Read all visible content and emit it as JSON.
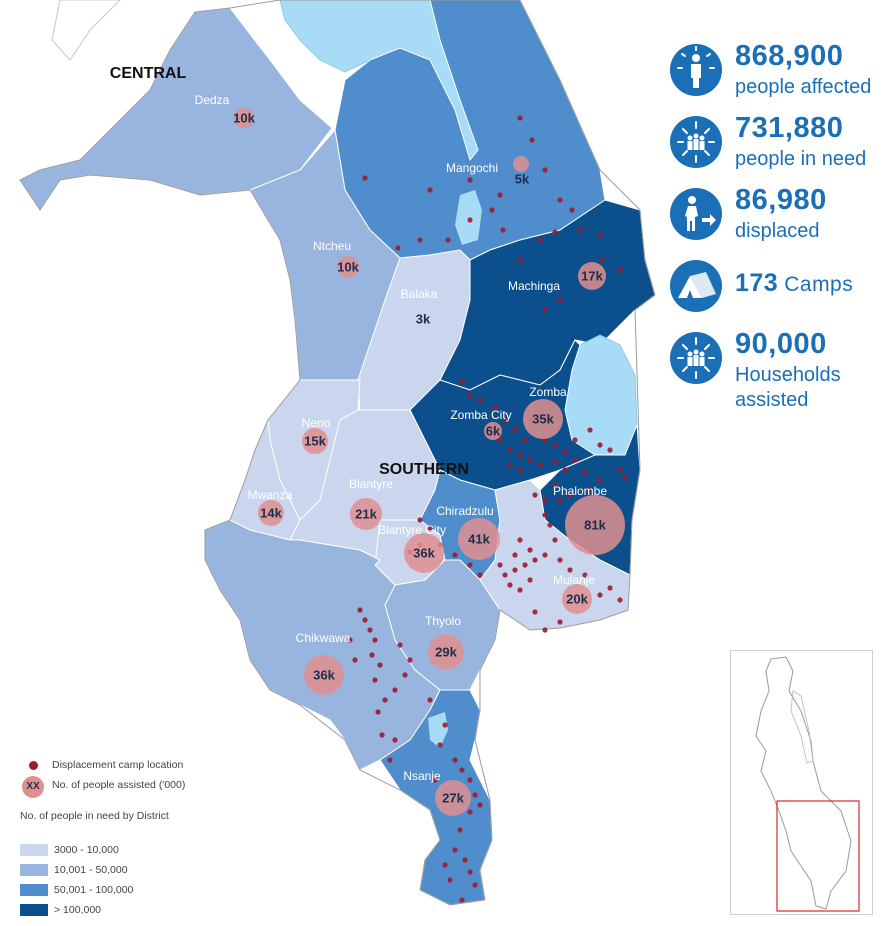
{
  "map": {
    "regions": [
      "CENTRAL",
      "SOUTHERN"
    ],
    "colors": {
      "lake": "#a8dbf5",
      "outside": "#ffffff",
      "border": "#9a9a9a",
      "camp": "#9b1b30",
      "bubble": "#e08f8f"
    },
    "districts": [
      {
        "name": "Dedza",
        "assisted": "10k",
        "need_class": "10,001 - 50,000"
      },
      {
        "name": "Mangochi",
        "assisted": "5k",
        "need_class": "50,001 - 100,000"
      },
      {
        "name": "Ntcheu",
        "assisted": "10k",
        "need_class": "10,001 - 50,000"
      },
      {
        "name": "Balaka",
        "assisted": "3k",
        "need_class": "3000 - 10,000"
      },
      {
        "name": "Machinga",
        "assisted": "17k",
        "need_class": "> 100,000"
      },
      {
        "name": "Zomba",
        "assisted": "35k",
        "need_class": "> 100,000"
      },
      {
        "name": "Zomba City",
        "assisted": "6k",
        "need_class": "> 100,000"
      },
      {
        "name": "Neno",
        "assisted": "15k",
        "need_class": "3000 - 10,000"
      },
      {
        "name": "Mwanza",
        "assisted": "14k",
        "need_class": "3000 - 10,000"
      },
      {
        "name": "Blantyre",
        "assisted": "21k",
        "need_class": "3000 - 10,000"
      },
      {
        "name": "Blantyre City",
        "assisted": "36k",
        "need_class": "3000 - 10,000"
      },
      {
        "name": "Chiradzulu",
        "assisted": "41k",
        "need_class": "50,001 - 100,000"
      },
      {
        "name": "Phalombe",
        "assisted": "81k",
        "need_class": "> 100,000"
      },
      {
        "name": "Mulanje",
        "assisted": "20k",
        "need_class": "3000 - 10,000"
      },
      {
        "name": "Thyolo",
        "assisted": "29k",
        "need_class": "10,001 - 50,000"
      },
      {
        "name": "Chikwawa",
        "assisted": "36k",
        "need_class": "10,001 - 50,000"
      },
      {
        "name": "Nsanje",
        "assisted": "27k",
        "need_class": "50,001 - 100,000"
      }
    ]
  },
  "stats": [
    {
      "number": "868,900",
      "label": "people affected",
      "icon": "person-alert-icon"
    },
    {
      "number": "731,880",
      "label": "people in need",
      "icon": "people-in-need-icon"
    },
    {
      "number": "86,980",
      "label": "displaced",
      "icon": "displaced-person-icon"
    },
    {
      "number": "173",
      "label": "Camps",
      "icon": "camp-tent-icon"
    },
    {
      "number": "90,000",
      "label": "Households assisted",
      "icon": "households-assisted-icon"
    }
  ],
  "legend": {
    "camp_label": "Displacement camp location",
    "bubble_symbol": "XX",
    "bubble_label": "No. of people assisted ('000)",
    "title": "No. of people in need by District",
    "classes": [
      {
        "label": "3000 - 10,000",
        "color": "#c9d6ee"
      },
      {
        "label": "10,001 - 50,000",
        "color": "#97b5df"
      },
      {
        "label": "50,001 - 100,000",
        "color": "#508dcc"
      },
      {
        "label": "> 100,000",
        "color": "#0b4f8c"
      }
    ]
  }
}
